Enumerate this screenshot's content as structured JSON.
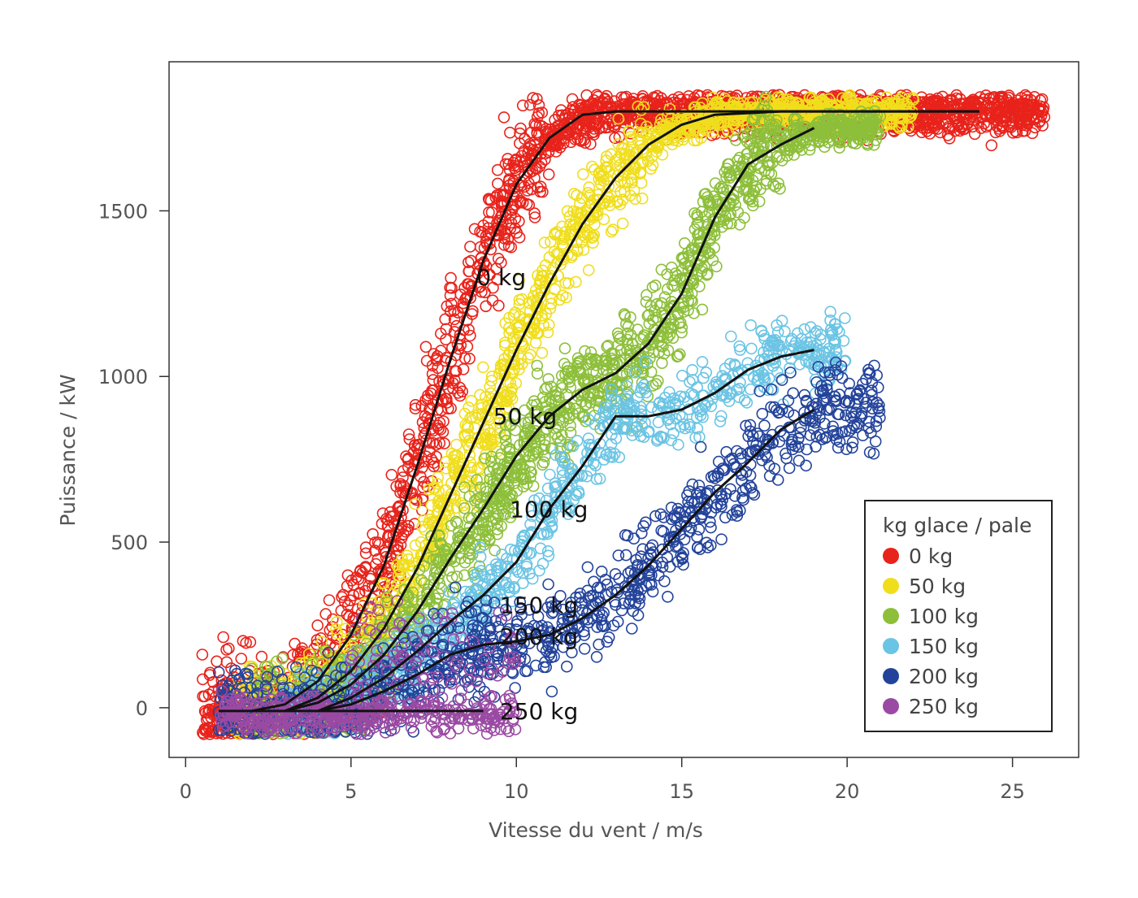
{
  "chart_data": {
    "type": "scatter",
    "xlabel": "Vitesse du vent / m/s",
    "ylabel": "Puissance / kW",
    "xlim": [
      -0.5,
      27
    ],
    "ylim": [
      -150,
      1950
    ],
    "xticks": [
      0,
      5,
      10,
      15,
      20,
      25
    ],
    "yticks": [
      0,
      500,
      1000,
      1500
    ],
    "grid": false,
    "legend": {
      "title": "kg glace / pale",
      "placement": "bottom-right",
      "entries": [
        {
          "label": "0 kg",
          "color": "#e8231b"
        },
        {
          "label": "50 kg",
          "color": "#f0de1c"
        },
        {
          "label": "100 kg",
          "color": "#8dbf3a"
        },
        {
          "label": "150 kg",
          "color": "#6ac4e4"
        },
        {
          "label": "200 kg",
          "color": "#23439b"
        },
        {
          "label": "250 kg",
          "color": "#9a4aa3"
        }
      ]
    },
    "series": [
      {
        "name": "0 kg",
        "color": "#e8231b",
        "fit": [
          [
            2,
            -10
          ],
          [
            3,
            10
          ],
          [
            4,
            80
          ],
          [
            5,
            220
          ],
          [
            6,
            430
          ],
          [
            7,
            730
          ],
          [
            8,
            1050
          ],
          [
            9,
            1350
          ],
          [
            10,
            1580
          ],
          [
            11,
            1720
          ],
          [
            12,
            1790
          ],
          [
            13,
            1800
          ],
          [
            24,
            1800
          ]
        ],
        "label": "0 kg",
        "label_at": [
          8.8,
          1300
        ]
      },
      {
        "name": "50 kg",
        "color": "#f0de1c",
        "fit": [
          [
            3,
            -10
          ],
          [
            4,
            30
          ],
          [
            5,
            110
          ],
          [
            6,
            240
          ],
          [
            7,
            420
          ],
          [
            8,
            640
          ],
          [
            9,
            860
          ],
          [
            10,
            1080
          ],
          [
            11,
            1280
          ],
          [
            12,
            1460
          ],
          [
            13,
            1600
          ],
          [
            14,
            1700
          ],
          [
            15,
            1760
          ],
          [
            16,
            1790
          ],
          [
            18,
            1800
          ],
          [
            24,
            1800
          ]
        ],
        "label": "50 kg",
        "label_at": [
          9.3,
          880
        ]
      },
      {
        "name": "100 kg",
        "color": "#8dbf3a",
        "fit": [
          [
            3,
            -10
          ],
          [
            4,
            15
          ],
          [
            5,
            70
          ],
          [
            6,
            160
          ],
          [
            7,
            290
          ],
          [
            8,
            450
          ],
          [
            9,
            600
          ],
          [
            10,
            760
          ],
          [
            11,
            880
          ],
          [
            12,
            960
          ],
          [
            13,
            1010
          ],
          [
            14,
            1100
          ],
          [
            15,
            1250
          ],
          [
            16,
            1480
          ],
          [
            17,
            1640
          ],
          [
            18,
            1700
          ],
          [
            19,
            1750
          ]
        ],
        "label": "100 kg",
        "label_at": [
          9.8,
          600
        ]
      },
      {
        "name": "150 kg",
        "color": "#6ac4e4",
        "fit": [
          [
            4,
            -10
          ],
          [
            5,
            30
          ],
          [
            6,
            90
          ],
          [
            7,
            170
          ],
          [
            8,
            260
          ],
          [
            9,
            340
          ],
          [
            10,
            440
          ],
          [
            11,
            600
          ],
          [
            12,
            730
          ],
          [
            13,
            880
          ],
          [
            14,
            880
          ],
          [
            15,
            900
          ],
          [
            16,
            950
          ],
          [
            17,
            1020
          ],
          [
            18,
            1060
          ],
          [
            19,
            1080
          ]
        ],
        "label": "150 kg",
        "label_at": [
          9.5,
          310
        ]
      },
      {
        "name": "200 kg",
        "color": "#23439b",
        "fit": [
          [
            4,
            -10
          ],
          [
            5,
            10
          ],
          [
            6,
            50
          ],
          [
            7,
            100
          ],
          [
            8,
            160
          ],
          [
            9,
            190
          ],
          [
            10,
            200
          ],
          [
            11,
            220
          ],
          [
            12,
            270
          ],
          [
            13,
            340
          ],
          [
            14,
            430
          ],
          [
            15,
            540
          ],
          [
            16,
            650
          ],
          [
            17,
            740
          ],
          [
            18,
            840
          ],
          [
            19,
            900
          ]
        ],
        "label": "200 kg",
        "label_at": [
          9.5,
          215
        ]
      },
      {
        "name": "250 kg",
        "color": "#9a4aa3",
        "fit": [
          [
            1,
            -10
          ],
          [
            3,
            -10
          ],
          [
            5,
            -10
          ],
          [
            7,
            -10
          ],
          [
            9,
            -10
          ]
        ],
        "label": "250 kg",
        "label_at": [
          9.5,
          -10
        ]
      }
    ]
  }
}
